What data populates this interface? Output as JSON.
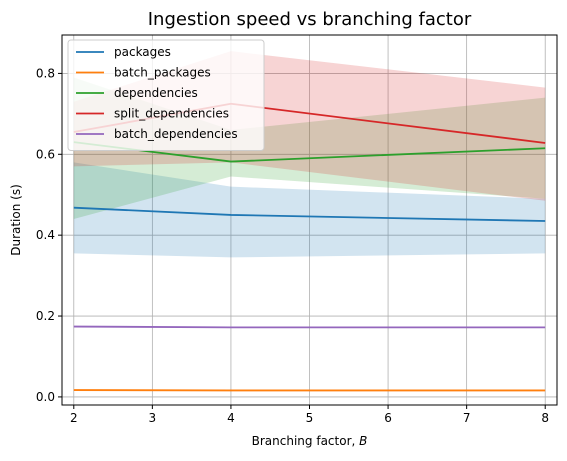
{
  "chart_data": {
    "type": "line",
    "title": "Ingestion speed vs branching factor",
    "xlabel": "Branching factor, ",
    "xlabel_var": "B",
    "ylabel": "Duration (s)",
    "xlim": [
      1.85,
      8.15
    ],
    "ylim": [
      -0.02,
      0.895
    ],
    "xticks": [
      2,
      3,
      4,
      5,
      6,
      7,
      8
    ],
    "yticks": [
      0.0,
      0.2,
      0.4,
      0.6,
      0.8
    ],
    "ytick_labels": [
      "0.0",
      "0.2",
      "0.4",
      "0.6",
      "0.8"
    ],
    "grid": true,
    "legend_position": "upper-left",
    "x": [
      2,
      4,
      8
    ],
    "series": [
      {
        "name": "packages",
        "color": "#1f77b4",
        "values": [
          0.468,
          0.45,
          0.435
        ],
        "band_low": [
          0.355,
          0.345,
          0.355
        ],
        "band_high": [
          0.58,
          0.52,
          0.49
        ]
      },
      {
        "name": "batch_packages",
        "color": "#ff7f0e",
        "values": [
          0.017,
          0.016,
          0.016
        ],
        "band_low": [
          0.015,
          0.015,
          0.015
        ],
        "band_high": [
          0.019,
          0.018,
          0.018
        ]
      },
      {
        "name": "dependencies",
        "color": "#2ca02c",
        "values": [
          0.63,
          0.582,
          0.615
        ],
        "band_low": [
          0.44,
          0.545,
          0.49
        ],
        "band_high": [
          0.79,
          0.66,
          0.74
        ]
      },
      {
        "name": "split_dependencies",
        "color": "#d62728",
        "values": [
          0.655,
          0.725,
          0.628
        ],
        "band_low": [
          0.57,
          0.58,
          0.485
        ],
        "band_high": [
          0.73,
          0.855,
          0.765
        ]
      },
      {
        "name": "batch_dependencies",
        "color": "#9467bd",
        "values": [
          0.174,
          0.172,
          0.172
        ],
        "band_low": [
          0.172,
          0.17,
          0.17
        ],
        "band_high": [
          0.176,
          0.174,
          0.174
        ]
      }
    ]
  }
}
